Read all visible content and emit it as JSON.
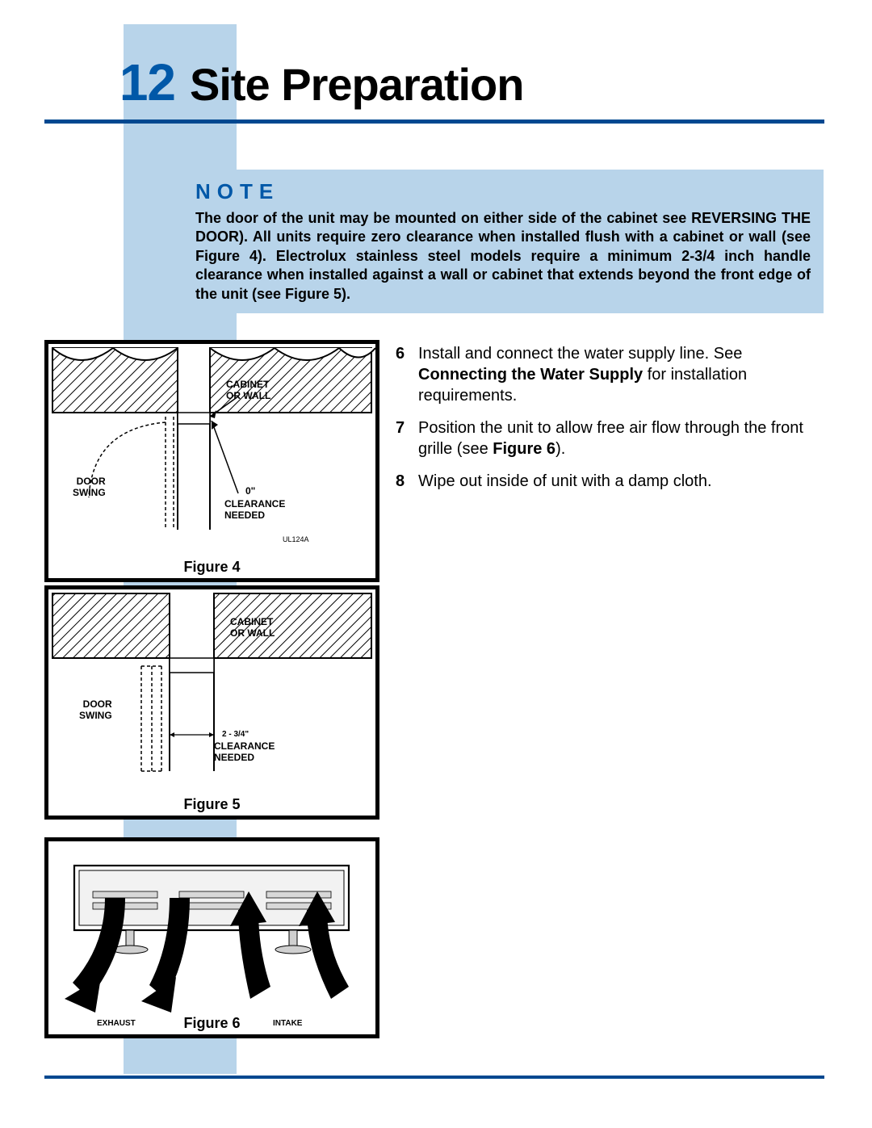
{
  "colors": {
    "sidebar": "#b8d4ea",
    "accent": "#0058a8",
    "rule": "#004890",
    "text": "#000000",
    "background": "#ffffff"
  },
  "header": {
    "page_number": "12",
    "title": "Site Preparation"
  },
  "note": {
    "label": "NOTE",
    "body": "The door of the unit may be mounted on either side of the cabinet see REVERSING THE DOOR). All units require zero clearance when installed flush with a cabinet or wall (see Figure 4).  Electrolux stainless steel models require a minimum 2-3/4 inch handle clearance when installed against a wall or cabinet that extends beyond the front edge of the unit (see Figure 5)."
  },
  "steps": [
    {
      "num": "6",
      "html": "Install and connect the water supply line. See <b>Connecting the Water Supply</b> for installation requirements."
    },
    {
      "num": "7",
      "html": "Position the unit to allow free air flow through the front grille (see <b>Figure 6</b>)."
    },
    {
      "num": "8",
      "html": "Wipe out inside of unit with a damp cloth."
    }
  ],
  "figures": {
    "fig4": {
      "caption": "Figure 4",
      "cabinet_label": "CABINET\nOR WALL",
      "door_label": "DOOR\nSWING",
      "clearance_value": "0\"",
      "clearance_label": "CLEARANCE\nNEEDED",
      "code": "UL124A"
    },
    "fig5": {
      "caption": "Figure 5",
      "cabinet_label": "CABINET\nOR WALL",
      "door_label": "DOOR\nSWING",
      "clearance_value": "2 - 3/4\"",
      "clearance_label": "CLEARANCE\nNEEDED"
    },
    "fig6": {
      "caption": "Figure 6",
      "exhaust_label": "EXHAUST",
      "intake_label": "INTAKE"
    }
  }
}
